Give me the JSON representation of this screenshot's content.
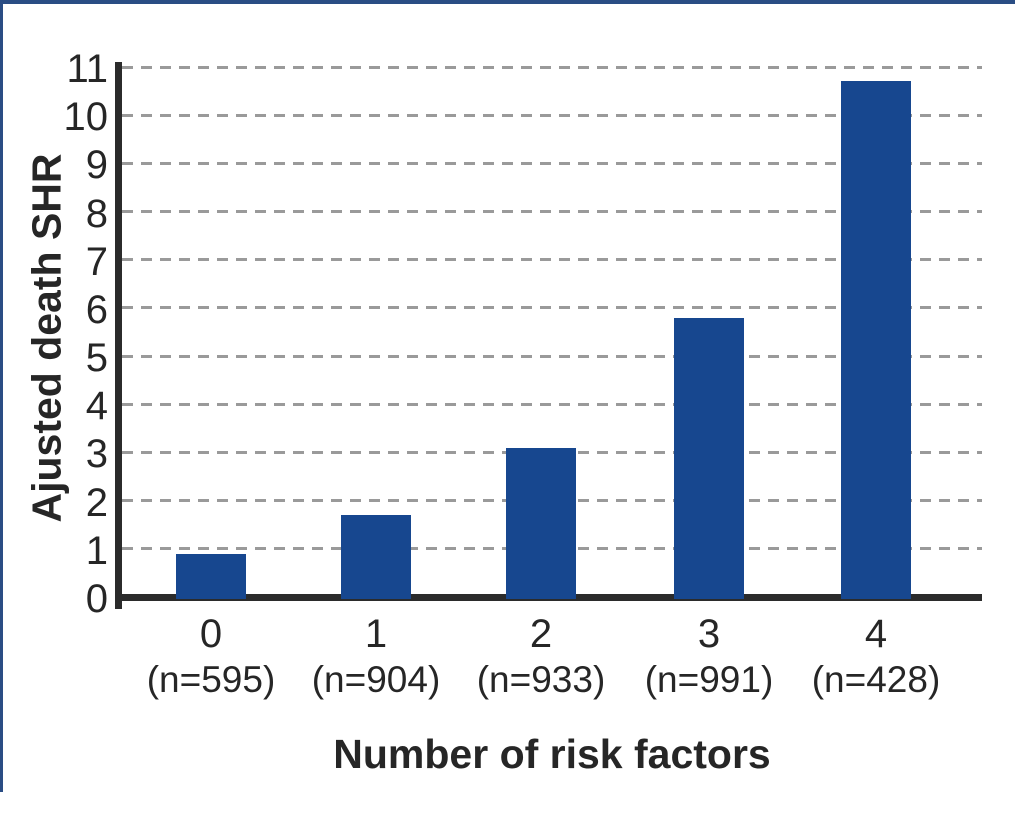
{
  "figure": {
    "background": "#ffffff",
    "border_color": "#2a4d84"
  },
  "chart_data": {
    "type": "bar",
    "title": "",
    "categories": [
      "0",
      "1",
      "2",
      "3",
      "4"
    ],
    "category_sublabels": [
      "(n=595)",
      "(n=904)",
      "(n=933)",
      "(n=991)",
      "(n=428)"
    ],
    "values": [
      0.9,
      1.7,
      3.1,
      5.8,
      10.7
    ],
    "xlabel": "Number of risk factors",
    "ylabel": "Ajusted death SHR",
    "ylim": [
      0,
      11
    ],
    "yticks": [
      0,
      1,
      2,
      3,
      4,
      5,
      6,
      7,
      8,
      9,
      10,
      11
    ],
    "grid": "horizontal-dashed",
    "gridlines_at": [
      1,
      2,
      3,
      4,
      5,
      6,
      7,
      8,
      9,
      10,
      11
    ],
    "legend": "none",
    "bar_color": "#17478f",
    "gridline_color": "#9a9a9a",
    "axis_color": "#2b2b2b",
    "text_color": "#262626"
  }
}
